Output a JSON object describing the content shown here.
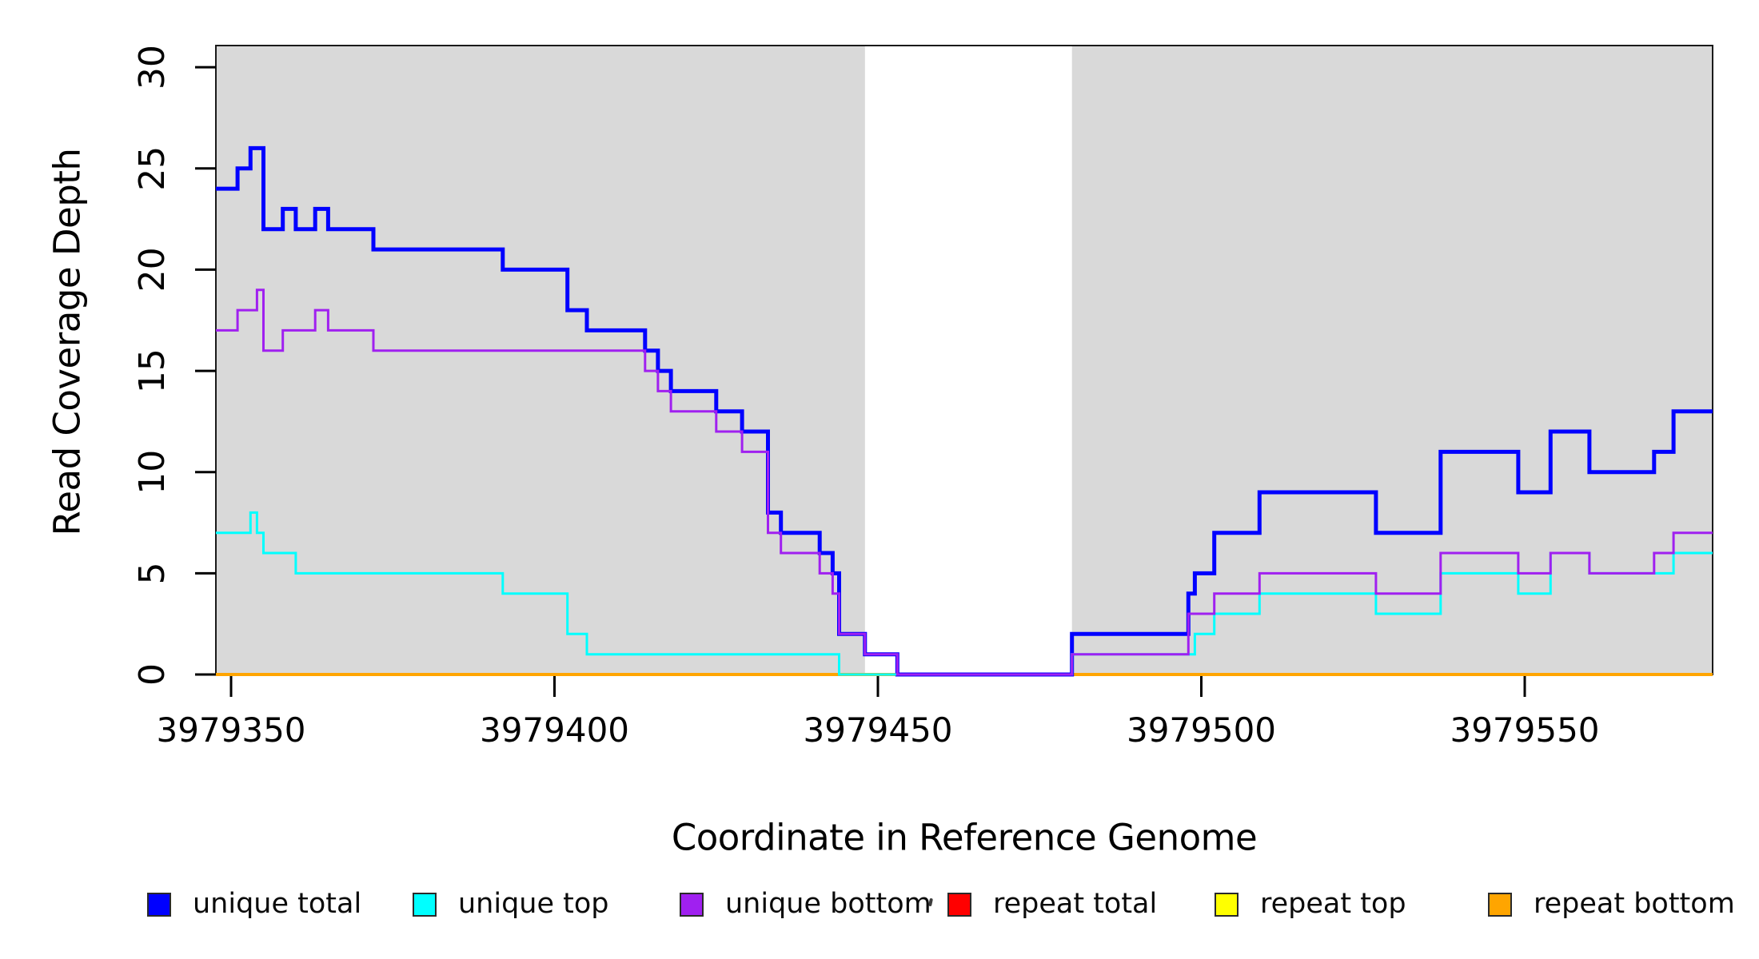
{
  "figure": {
    "x_axis_title": "Coordinate in Reference Genome",
    "y_axis_title": "Read Coverage Depth"
  },
  "chart_data": {
    "type": "line",
    "subtype": "step",
    "title": "",
    "xlabel": "Coordinate in Reference Genome",
    "ylabel": "Read Coverage Depth",
    "xlim": [
      3979347.65,
      3979579.05
    ],
    "ylim": [
      0,
      31.07
    ],
    "x_ticks": [
      3979350,
      3979400,
      3979450,
      3979500,
      3979550
    ],
    "y_ticks": [
      0,
      5,
      10,
      15,
      20,
      25,
      30
    ],
    "grid": false,
    "legend_position": "bottom",
    "plot_background": "#ffffff",
    "shaded_regions": [
      {
        "x0": 3979347.65,
        "x1": 3979448,
        "color": "#D9D9D9"
      },
      {
        "x0": 3979480,
        "x1": 3979579.05,
        "color": "#D9D9D9"
      }
    ],
    "series": [
      {
        "name": "unique total",
        "color": "#0000FF",
        "line_width": 5,
        "draw_order": 3,
        "steps": [
          [
            3979348,
            24
          ],
          [
            3979351,
            25
          ],
          [
            3979353,
            26
          ],
          [
            3979355,
            22
          ],
          [
            3979358,
            23
          ],
          [
            3979360,
            22
          ],
          [
            3979363,
            23
          ],
          [
            3979365,
            22
          ],
          [
            3979372,
            21
          ],
          [
            3979392,
            20
          ],
          [
            3979402,
            18
          ],
          [
            3979405,
            17
          ],
          [
            3979414,
            16
          ],
          [
            3979416,
            15
          ],
          [
            3979418,
            14
          ],
          [
            3979425,
            13
          ],
          [
            3979429,
            12
          ],
          [
            3979433,
            8
          ],
          [
            3979435,
            7
          ],
          [
            3979441,
            6
          ],
          [
            3979443,
            5
          ],
          [
            3979444,
            2
          ],
          [
            3979448,
            1
          ],
          [
            3979453,
            0
          ],
          [
            3979480,
            2
          ],
          [
            3979498,
            4
          ],
          [
            3979499,
            5
          ],
          [
            3979502,
            7
          ],
          [
            3979509,
            9
          ],
          [
            3979527,
            7
          ],
          [
            3979537,
            11
          ],
          [
            3979549,
            9
          ],
          [
            3979554,
            12
          ],
          [
            3979560,
            10
          ],
          [
            3979570,
            11
          ],
          [
            3979573,
            13
          ]
        ]
      },
      {
        "name": "unique top",
        "color": "#00FFFF",
        "line_width": 3,
        "draw_order": 4,
        "steps": [
          [
            3979348,
            7
          ],
          [
            3979353,
            8
          ],
          [
            3979354,
            7
          ],
          [
            3979355,
            6
          ],
          [
            3979360,
            5
          ],
          [
            3979392,
            4
          ],
          [
            3979402,
            2
          ],
          [
            3979405,
            1
          ],
          [
            3979444,
            0
          ],
          [
            3979480,
            1
          ],
          [
            3979499,
            2
          ],
          [
            3979502,
            3
          ],
          [
            3979509,
            4
          ],
          [
            3979527,
            3
          ],
          [
            3979537,
            5
          ],
          [
            3979549,
            4
          ],
          [
            3979554,
            6
          ],
          [
            3979560,
            5
          ],
          [
            3979573,
            6
          ]
        ]
      },
      {
        "name": "unique bottom",
        "color": "#A020F0",
        "line_width": 3,
        "draw_order": 5,
        "steps": [
          [
            3979348,
            17
          ],
          [
            3979351,
            18
          ],
          [
            3979354,
            19
          ],
          [
            3979355,
            16
          ],
          [
            3979358,
            17
          ],
          [
            3979363,
            18
          ],
          [
            3979365,
            17
          ],
          [
            3979372,
            16
          ],
          [
            3979414,
            15
          ],
          [
            3979416,
            14
          ],
          [
            3979418,
            13
          ],
          [
            3979425,
            12
          ],
          [
            3979429,
            11
          ],
          [
            3979433,
            7
          ],
          [
            3979435,
            6
          ],
          [
            3979441,
            5
          ],
          [
            3979443,
            4
          ],
          [
            3979444,
            2
          ],
          [
            3979448,
            1
          ],
          [
            3979453,
            0
          ],
          [
            3979480,
            1
          ],
          [
            3979498,
            3
          ],
          [
            3979502,
            4
          ],
          [
            3979509,
            5
          ],
          [
            3979527,
            4
          ],
          [
            3979537,
            6
          ],
          [
            3979549,
            5
          ],
          [
            3979554,
            6
          ],
          [
            3979560,
            5
          ],
          [
            3979570,
            6
          ],
          [
            3979573,
            7
          ]
        ]
      },
      {
        "name": "repeat total",
        "color": "#FF0000",
        "line_width": 3,
        "draw_order": 0,
        "steps": [
          [
            3979348,
            0
          ]
        ]
      },
      {
        "name": "repeat top",
        "color": "#FFFF00",
        "line_width": 3,
        "draw_order": 1,
        "steps": [
          [
            3979348,
            0
          ]
        ]
      },
      {
        "name": "repeat bottom",
        "color": "#FFA500",
        "line_width": 4,
        "draw_order": 2,
        "steps": [
          [
            3979348,
            0
          ]
        ]
      }
    ]
  }
}
